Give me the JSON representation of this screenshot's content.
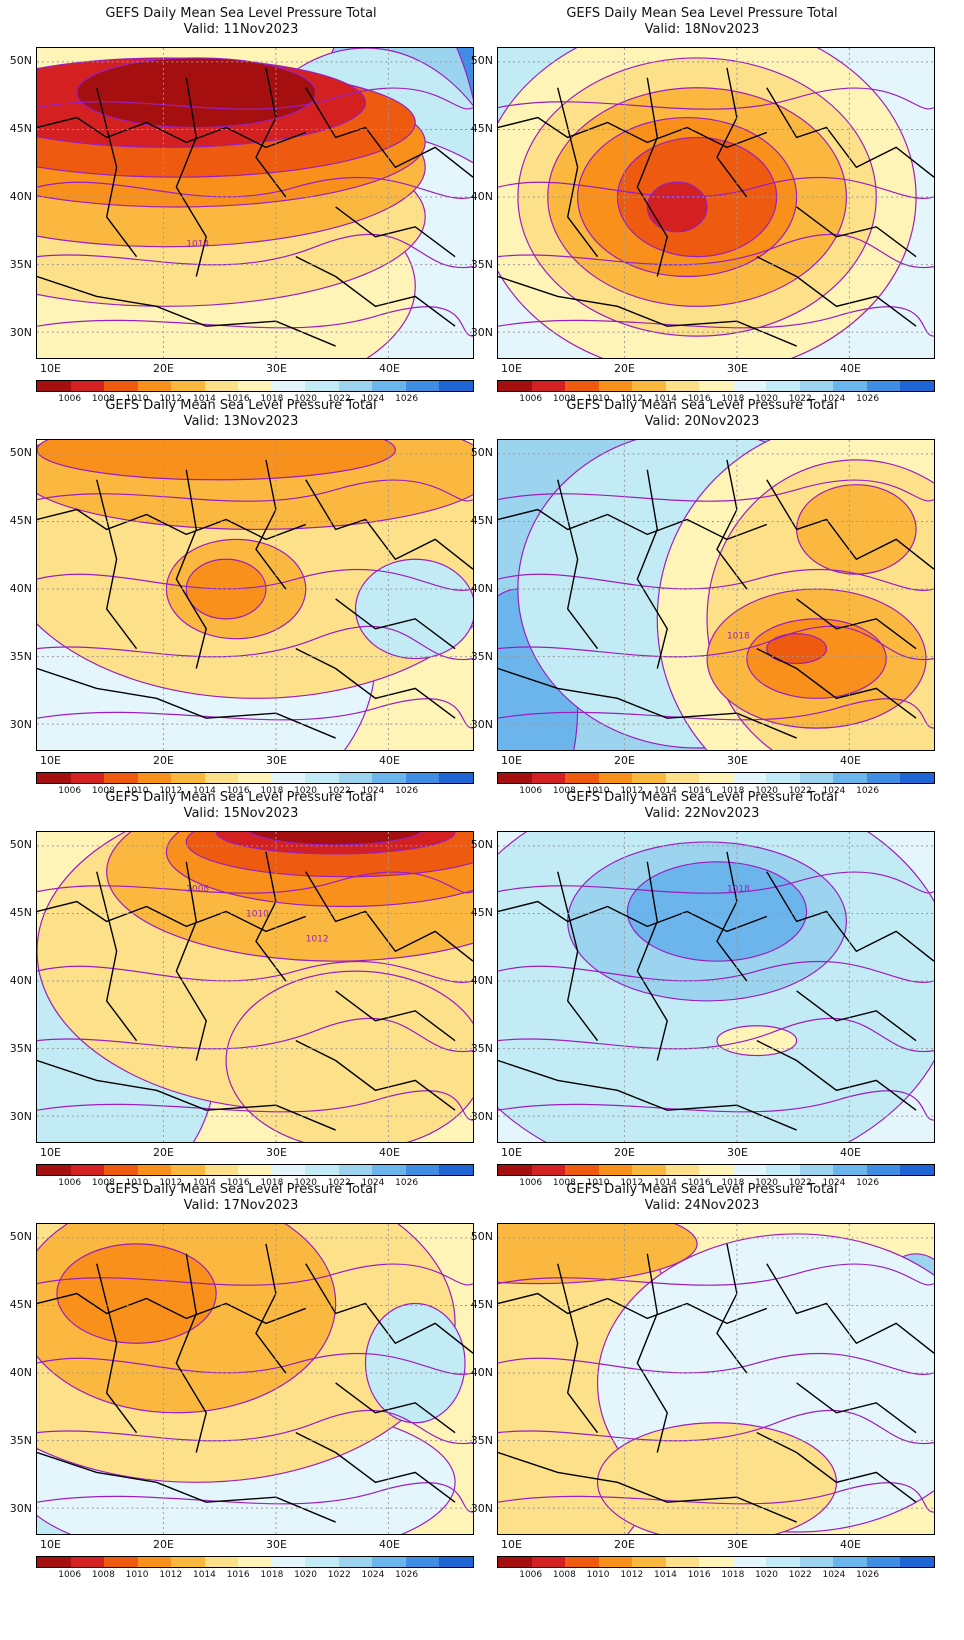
{
  "colorbar": {
    "colors": [
      "#a50f0f",
      "#d42020",
      "#ee5a10",
      "#f9901c",
      "#fbb840",
      "#fde08a",
      "#fff4b8",
      "#e4f6fb",
      "#c2ebf5",
      "#9cd4f0",
      "#6cb4ec",
      "#3f8ee3",
      "#1f64d4"
    ],
    "labels": [
      "1006",
      "1008",
      "1010",
      "1012",
      "1014",
      "1016",
      "1018",
      "1020",
      "1022",
      "1024",
      "1026"
    ]
  },
  "axes": {
    "lat_labels": [
      "50N",
      "45N",
      "40N",
      "35N",
      "30N"
    ],
    "lon_labels": [
      "10E",
      "20E",
      "30E",
      "40E"
    ]
  },
  "panels": [
    {
      "title": "GEFS Daily Mean Sea Level Pressure Total",
      "valid": "Valid: 11Nov2023",
      "contour_labels": [
        "1014"
      ]
    },
    {
      "title": "GEFS Daily Mean Sea Level Pressure Total",
      "valid": "Valid: 18Nov2023",
      "contour_labels": []
    },
    {
      "title": "GEFS Daily Mean Sea Level Pressure Total",
      "valid": "Valid: 13Nov2023",
      "contour_labels": []
    },
    {
      "title": "GEFS Daily Mean Sea Level Pressure Total",
      "valid": "Valid: 20Nov2023",
      "contour_labels": [
        "1018"
      ]
    },
    {
      "title": "GEFS Daily Mean Sea Level Pressure Total",
      "valid": "Valid: 15Nov2023",
      "contour_labels": [
        "1008",
        "1010",
        "1012"
      ]
    },
    {
      "title": "GEFS Daily Mean Sea Level Pressure Total",
      "valid": "Valid: 22Nov2023",
      "contour_labels": [
        "1018"
      ]
    },
    {
      "title": "GEFS Daily Mean Sea Level Pressure Total",
      "valid": "Valid: 17Nov2023",
      "contour_labels": []
    },
    {
      "title": "GEFS Daily Mean Sea Level Pressure Total",
      "valid": "Valid: 24Nov2023",
      "contour_labels": []
    }
  ]
}
